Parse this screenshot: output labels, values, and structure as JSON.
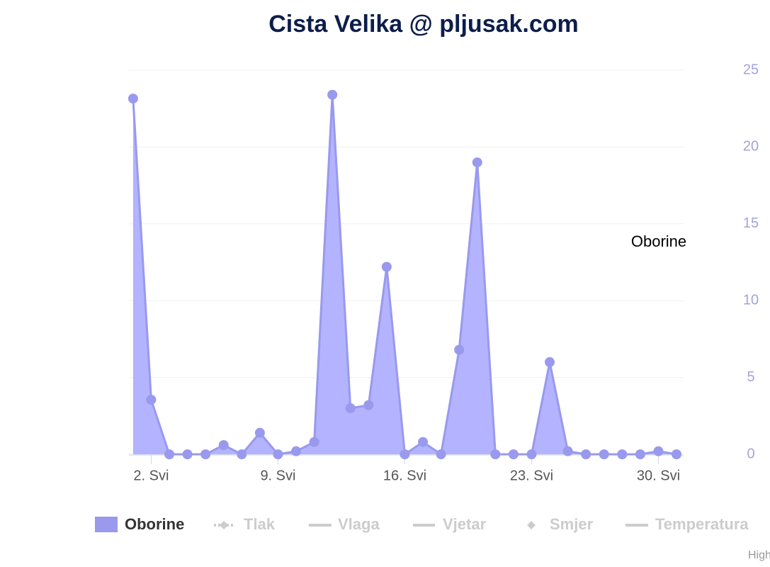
{
  "chart_data": {
    "type": "area",
    "title": "Cista Velika @ pljusak.com",
    "x": [
      1,
      2,
      3,
      4,
      5,
      6,
      7,
      8,
      9,
      10,
      11,
      12,
      13,
      14,
      15,
      16,
      17,
      18,
      19,
      20,
      21,
      22,
      23,
      24,
      25,
      26,
      27,
      28,
      29,
      30,
      31
    ],
    "xlim": [
      0.77,
      31.39
    ],
    "xticks": [
      {
        "value": 2,
        "label": "2. Svi"
      },
      {
        "value": 9,
        "label": "9. Svi"
      },
      {
        "value": 16,
        "label": "16. Svi"
      },
      {
        "value": 23,
        "label": "23. Svi"
      },
      {
        "value": 30,
        "label": "30. Svi"
      }
    ],
    "y_axis_title": "Oborine",
    "ylim": [
      0,
      25
    ],
    "yticks": [
      0,
      5,
      10,
      15,
      20,
      25
    ],
    "grid": true,
    "series": [
      {
        "name": "Oborine",
        "color": "#9999ee",
        "values": [
          23.15,
          3.55,
          0,
          0,
          0,
          0.6,
          0,
          1.4,
          0,
          0.2,
          0.8,
          23.4,
          3.0,
          3.2,
          12.2,
          0,
          0.8,
          0,
          6.8,
          19.0,
          0,
          0,
          0,
          6.0,
          0.2,
          0,
          0,
          0,
          0,
          0.2,
          0
        ]
      }
    ],
    "hidden_series": [
      "Tlak",
      "Vlaga",
      "Vjetar",
      "Smjer",
      "Temperatura"
    ],
    "credits": "Highcharts.com"
  }
}
